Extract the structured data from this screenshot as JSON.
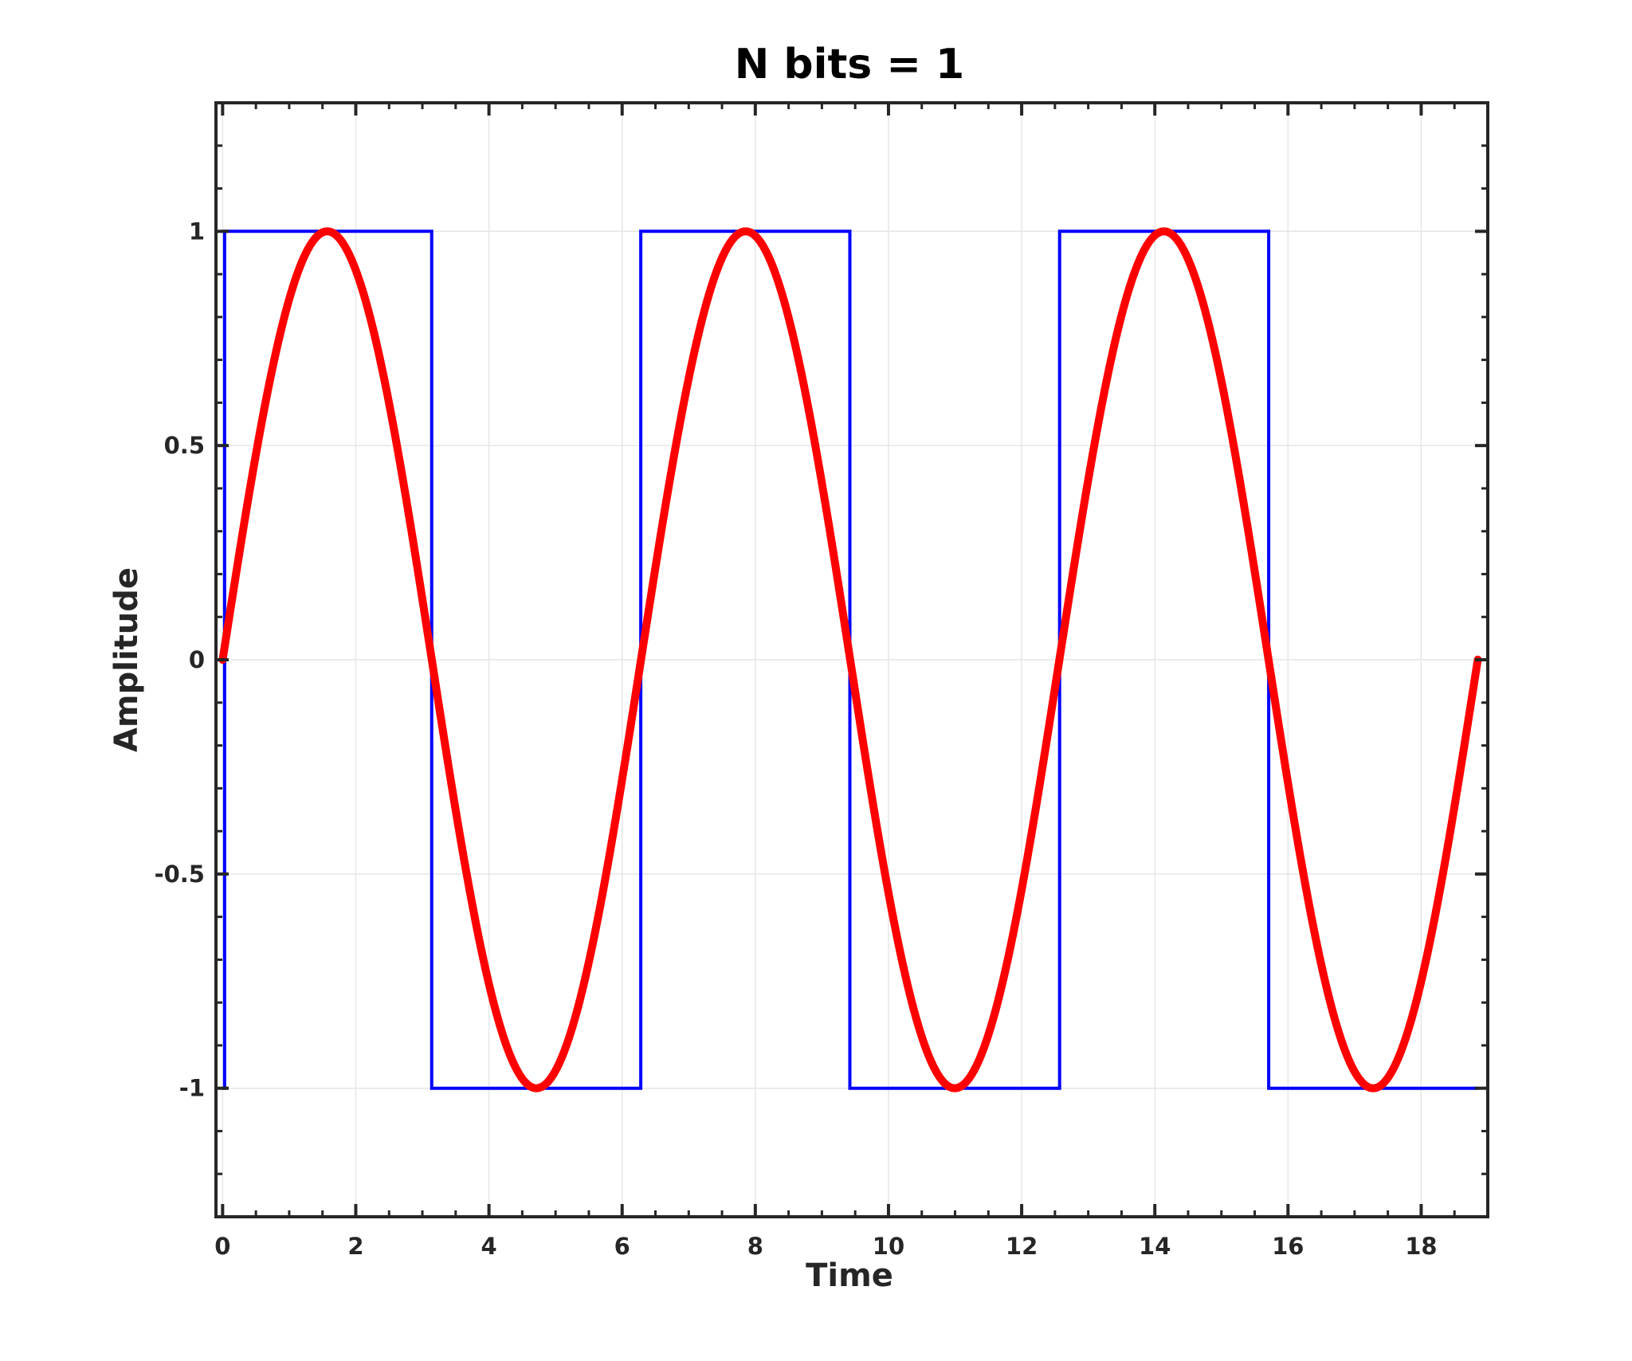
{
  "chart_data": {
    "type": "line",
    "title": "N bits = 1",
    "xlabel": "Time",
    "ylabel": "Amplitude",
    "xlim": [
      -0.1,
      19.0
    ],
    "ylim": [
      -1.3,
      1.3
    ],
    "grid": true,
    "x_ticks": [
      0,
      2,
      4,
      6,
      8,
      10,
      12,
      14,
      16,
      18
    ],
    "x_tick_labels": [
      "0",
      "2",
      "4",
      "6",
      "8",
      "10",
      "12",
      "14",
      "16",
      "18"
    ],
    "y_ticks": [
      1,
      0.5,
      0,
      -0.5,
      -1
    ],
    "y_tick_labels": [
      "1",
      "0.5",
      "0",
      "-0.5",
      "-1"
    ],
    "series": [
      {
        "kind": "step",
        "color": "#0000ff",
        "x": [
          0,
          0.03,
          3.14,
          6.28,
          9.42,
          12.57,
          15.71,
          18.85
        ],
        "y": [
          -1,
          1,
          -1,
          1,
          -1,
          1,
          -1,
          -1
        ]
      },
      {
        "kind": "curve",
        "function": "sin",
        "color": "#ff0000",
        "x_range": [
          0,
          18.85
        ],
        "amplitude": 1
      }
    ]
  }
}
